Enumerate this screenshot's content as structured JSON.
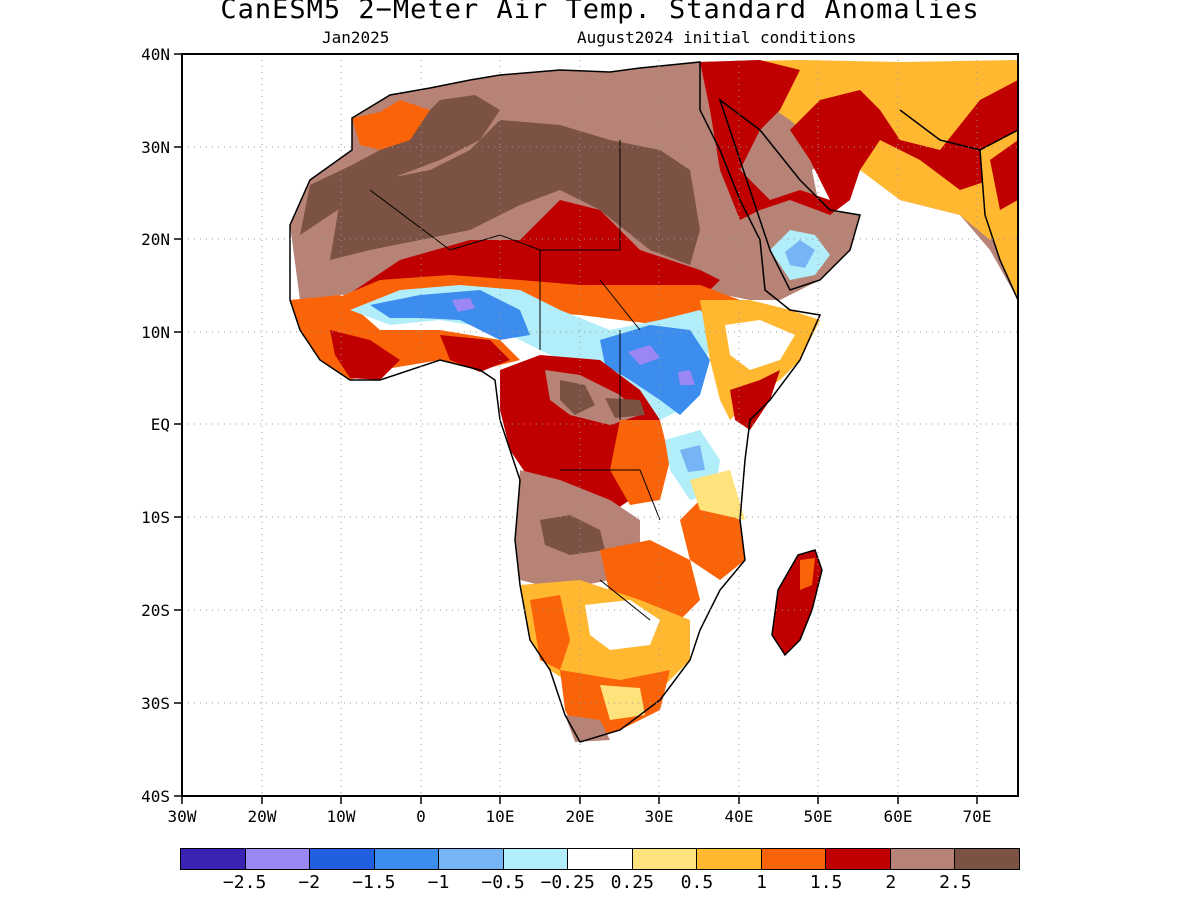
{
  "title": "CanESM5 2−Meter Air Temp. Standard Anomalies",
  "subtitle_left": "Jan2025",
  "subtitle_right": "August2024 initial conditions",
  "map": {
    "lon_ticks": [
      "30W",
      "20W",
      "10W",
      "0",
      "10E",
      "20E",
      "30E",
      "40E",
      "50E",
      "60E",
      "70E"
    ],
    "lat_ticks": [
      "40N",
      "30N",
      "20N",
      "10N",
      "EQ",
      "10S",
      "20S",
      "30S",
      "40S"
    ],
    "grid": true,
    "variable": "2-meter air temperature standard anomaly",
    "domain": "Africa"
  },
  "colorbar": {
    "colors": [
      "#3b22b5",
      "#9a87f3",
      "#1f5fe0",
      "#3c8ded",
      "#77b4f6",
      "#b2eefa",
      "#ffffff",
      "#ffe27c",
      "#ffb830",
      "#fb6308",
      "#c00000",
      "#b68376",
      "#7b5243"
    ],
    "labels": [
      "−2.5",
      "−2",
      "−1.5",
      "−1",
      "−0.5",
      "−0.25",
      "0.25",
      "0.5",
      "1",
      "1.5",
      "2",
      "2.5"
    ]
  }
}
